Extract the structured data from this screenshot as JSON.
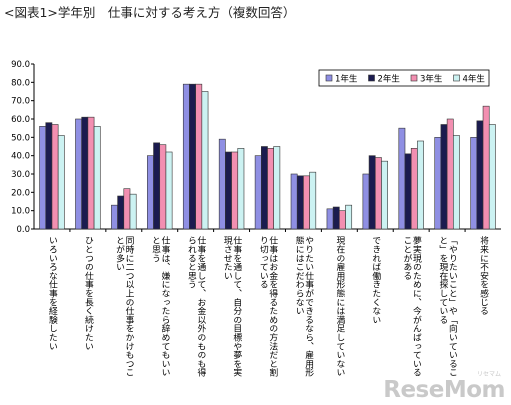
{
  "title": "<図表1>学年別　仕事に対する考え方（複数回答）",
  "watermark": "ReseMom",
  "watermark_sub": "リセマム",
  "colors": {
    "series": [
      "#8f8fe3",
      "#1b1b4f",
      "#f28fb1",
      "#ccf2f2"
    ],
    "border": "#333333",
    "axis": "#000000"
  },
  "chart_data": {
    "type": "bar",
    "title": "<図表1>学年別　仕事に対する考え方（複数回答）",
    "xlabel": "",
    "ylabel": "",
    "ylim": [
      0,
      90
    ],
    "yticks": [
      "0.0",
      "10.0",
      "20.0",
      "30.0",
      "40.0",
      "50.0",
      "60.0",
      "70.0",
      "80.0",
      "90.0"
    ],
    "grid": false,
    "legend_position": "top-right",
    "categories": [
      "いろいろな仕事を経験したい",
      "ひとつの仕事を長く続けたい",
      "同時に二つ以上の仕事をかけもつことが多い",
      "仕事は、嫌になったら辞めてもいいと思う",
      "仕事を通して、お金以外のものも得られると思う",
      "仕事を通して、自分の目標や夢を実現させたい",
      "仕事はお金を得るための方法だと割り切っている",
      "やりたい仕事ができるなら、雇用形態にはこだわらない",
      "現在の雇用形態には満足していない",
      "できれば働きたくない",
      "夢実現のために、今がんばっていることがある",
      "「やりたいこと」や「向いていること」を現在探している",
      "将来に不安を感じる"
    ],
    "series": [
      {
        "name": "1年生",
        "values": [
          56,
          60,
          13,
          40,
          79,
          49,
          40,
          30,
          11,
          30,
          55,
          50,
          50
        ]
      },
      {
        "name": "2年生",
        "values": [
          58,
          61,
          18,
          47,
          79,
          42,
          45,
          29,
          12,
          40,
          41,
          57,
          59
        ]
      },
      {
        "name": "3年生",
        "values": [
          57,
          61,
          22,
          46,
          79,
          42,
          44,
          29,
          10,
          39,
          44,
          60,
          67
        ]
      },
      {
        "name": "4年生",
        "values": [
          51,
          56,
          19,
          42,
          75,
          44,
          45,
          31,
          13,
          37,
          48,
          51,
          57
        ]
      }
    ]
  }
}
